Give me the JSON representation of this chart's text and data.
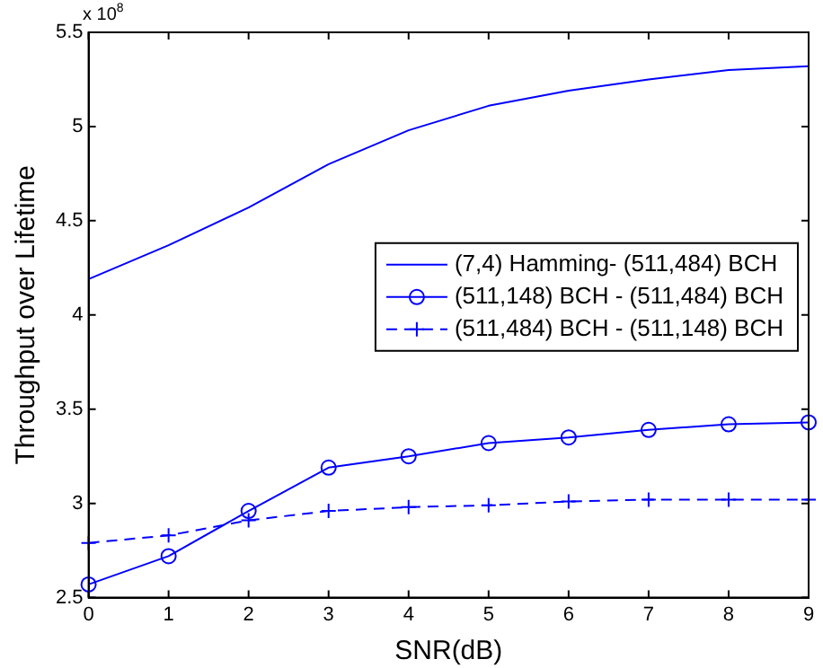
{
  "chart_data": {
    "type": "line",
    "xlabel": "SNR(dB)",
    "ylabel": "Throughput over Lifetime",
    "annotations": [
      "x 10$^{8}$"
    ],
    "x": [
      0,
      1,
      2,
      3,
      4,
      5,
      6,
      7,
      8,
      9
    ],
    "series": [
      {
        "name": "(7,4) Hamming- (511,484) BCH",
        "color": "#0000ff",
        "marker": "none",
        "line_style": "solid",
        "values": [
          4.19,
          4.37,
          4.57,
          4.8,
          4.98,
          5.11,
          5.19,
          5.25,
          5.3,
          5.32
        ]
      },
      {
        "name": "(511,148) BCH - (511,484) BCH",
        "color": "#0000ff",
        "marker": "circle",
        "line_style": "solid",
        "values": [
          2.57,
          2.72,
          2.96,
          3.19,
          3.25,
          3.32,
          3.35,
          3.39,
          3.42,
          3.43
        ]
      },
      {
        "name": "(511,484) BCH - (511,148) BCH",
        "color": "#0000ff",
        "marker": "cross",
        "line_style": "dashed",
        "values": [
          2.79,
          2.83,
          2.91,
          2.96,
          2.98,
          2.99,
          3.01,
          3.02,
          3.02,
          3.02
        ]
      }
    ],
    "xlim": [
      0,
      9
    ],
    "xticks": [
      0,
      1,
      2,
      3,
      4,
      5,
      6,
      7,
      8,
      9
    ],
    "ylim": [
      2.5,
      5.5
    ],
    "yticks": [
      2.5,
      3,
      3.5,
      4,
      4.5,
      5,
      5.5
    ],
    "grid": false,
    "legend": "right"
  }
}
